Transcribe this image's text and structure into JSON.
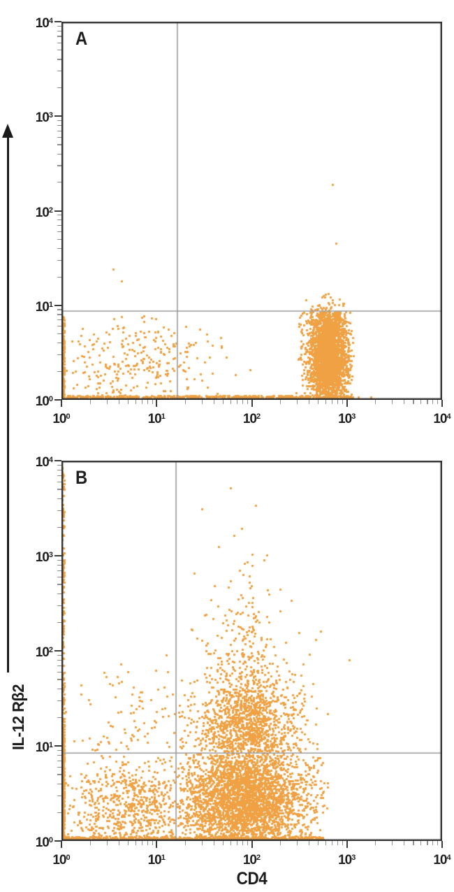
{
  "figure": {
    "x_axis_title": "CD4",
    "y_axis_title": "IL-12 Rβ2",
    "dot_color": "#EFA143",
    "axis_color": "#2e2e2e",
    "gate_line_color": "#9a9a9a",
    "tick_major_color": "#3c3c3c",
    "tick_minor_color": "#8f8f8f"
  },
  "chart_data": [
    {
      "panel_label": "A",
      "type": "scatter",
      "xlabel": "CD4",
      "ylabel": "IL-12 Rβ2",
      "xscale": "log10",
      "yscale": "log10",
      "xlim": [
        1,
        10000
      ],
      "ylim": [
        1,
        10000
      ],
      "x_tick_exponents": [
        0,
        1,
        2,
        3,
        4
      ],
      "y_tick_exponents": [
        0,
        1,
        2,
        3,
        4
      ],
      "grid": false,
      "quadrant_gate": {
        "x": 16.5,
        "y": 8.7
      },
      "populations": [
        {
          "name": "left-edge-column",
          "count": 140,
          "x": {
            "kind": "uniform",
            "min": 0.008,
            "max": 0.03
          },
          "y": {
            "kind": "uniform",
            "min": 0.0,
            "max": 0.88
          }
        },
        {
          "name": "baseline-band",
          "count": 850,
          "x": {
            "kind": "uniform",
            "min": 0.0,
            "max": 3.06
          },
          "y": {
            "kind": "uniform",
            "min": 0.0,
            "max": 0.045
          }
        },
        {
          "name": "autofluorescence-cloud",
          "count": 270,
          "x": {
            "kind": "normal",
            "mean": 0.78,
            "sd": 0.42,
            "min": 0.03,
            "max": 2.3
          },
          "y": {
            "kind": "normal",
            "mean": 0.42,
            "sd": 0.26,
            "min": 0.02,
            "max": 0.9
          }
        },
        {
          "name": "cd4-bright-negative-cluster",
          "count": 2500,
          "x": {
            "kind": "normal",
            "mean": 2.8,
            "sd": 0.105,
            "min": 2.46,
            "max": 3.07
          },
          "y": {
            "kind": "normal",
            "mean": 0.47,
            "sd": 0.29,
            "min": 0.02,
            "max": 0.935
          }
        },
        {
          "name": "cd4-bright-gate-halo",
          "count": 80,
          "x": {
            "kind": "normal",
            "mean": 2.78,
            "sd": 0.12,
            "min": 2.5,
            "max": 3.03
          },
          "y": {
            "kind": "normal",
            "mean": 0.95,
            "sd": 0.09,
            "min": 0.8,
            "max": 1.13
          }
        }
      ],
      "outliers_xy": [
        [
          710,
          190
        ],
        [
          760,
          45
        ],
        [
          3.5,
          24
        ],
        [
          4.3,
          18
        ],
        [
          1320,
          1.07
        ],
        [
          1780,
          1.07
        ]
      ]
    },
    {
      "panel_label": "B",
      "type": "scatter",
      "xlabel": "CD4",
      "ylabel": "IL-12 Rβ2",
      "xscale": "log10",
      "yscale": "log10",
      "xlim": [
        1,
        10000
      ],
      "ylim": [
        1,
        10000
      ],
      "x_tick_exponents": [
        0,
        1,
        2,
        3,
        4
      ],
      "y_tick_exponents": [
        0,
        1,
        2,
        3,
        4
      ],
      "grid": false,
      "quadrant_gate": {
        "x": 16,
        "y": 8.4
      },
      "populations": [
        {
          "name": "left-edge-column-full",
          "count": 210,
          "x": {
            "kind": "uniform",
            "min": 0.008,
            "max": 0.03
          },
          "y": {
            "kind": "uniform",
            "min": 0.0,
            "max": 3.97
          }
        },
        {
          "name": "left-edge-column-low",
          "count": 260,
          "x": {
            "kind": "uniform",
            "min": 0.008,
            "max": 0.03
          },
          "y": {
            "kind": "uniform",
            "min": 0.0,
            "max": 1.15
          }
        },
        {
          "name": "baseline-band",
          "count": 650,
          "x": {
            "kind": "uniform",
            "min": 0.03,
            "max": 2.75
          },
          "y": {
            "kind": "uniform",
            "min": 0.0,
            "max": 0.045
          }
        },
        {
          "name": "double-negative-cloud",
          "count": 620,
          "x": {
            "kind": "normal",
            "mean": 0.8,
            "sd": 0.38,
            "min": 0.04,
            "max": 1.19
          },
          "y": {
            "kind": "normal",
            "mean": 0.35,
            "sd": 0.3,
            "min": 0.02,
            "max": 0.9
          }
        },
        {
          "name": "cd4-pos-il12rb2-neg-block",
          "count": 3100,
          "x": {
            "kind": "normal",
            "mean": 1.93,
            "sd": 0.34,
            "min": 1.22,
            "max": 2.8
          },
          "y": {
            "kind": "normal",
            "mean": 0.42,
            "sd": 0.32,
            "min": 0.02,
            "max": 0.925
          }
        },
        {
          "name": "cd4-pos-il12rb2-low-band",
          "count": 950,
          "x": {
            "kind": "normal",
            "mean": 1.95,
            "sd": 0.3,
            "min": 1.22,
            "max": 2.7
          },
          "y": {
            "kind": "halfnormal",
            "base": 0.94,
            "scale": 0.38,
            "max": 2.1
          }
        },
        {
          "name": "cd4-pos-il12rb2-high-cone",
          "count": 480,
          "x": {
            "kind": "normal",
            "mean": 1.93,
            "sd": 0.3,
            "min": 1.05,
            "max": 2.8
          },
          "y": {
            "kind": "halfnormal",
            "base": 1.15,
            "scale": 0.7,
            "max": 3.3
          },
          "taper": {
            "y0": 1.2,
            "y_ref": 3.2,
            "sd_top": 0.16
          }
        },
        {
          "name": "upper-left-sparse",
          "count": 85,
          "x": {
            "kind": "normal",
            "mean": 0.85,
            "sd": 0.38,
            "min": 0.02,
            "max": 1.19
          },
          "y": {
            "kind": "halfnormal",
            "base": 0.95,
            "scale": 0.55,
            "max": 2.8
          }
        }
      ],
      "outliers_xy": [
        [
          60,
          5200
        ],
        [
          110,
          3400
        ],
        [
          30,
          3100
        ],
        [
          78,
          1950
        ],
        [
          1050,
          80
        ],
        [
          45,
          1250
        ],
        [
          135,
          900
        ],
        [
          25,
          650
        ]
      ]
    }
  ]
}
